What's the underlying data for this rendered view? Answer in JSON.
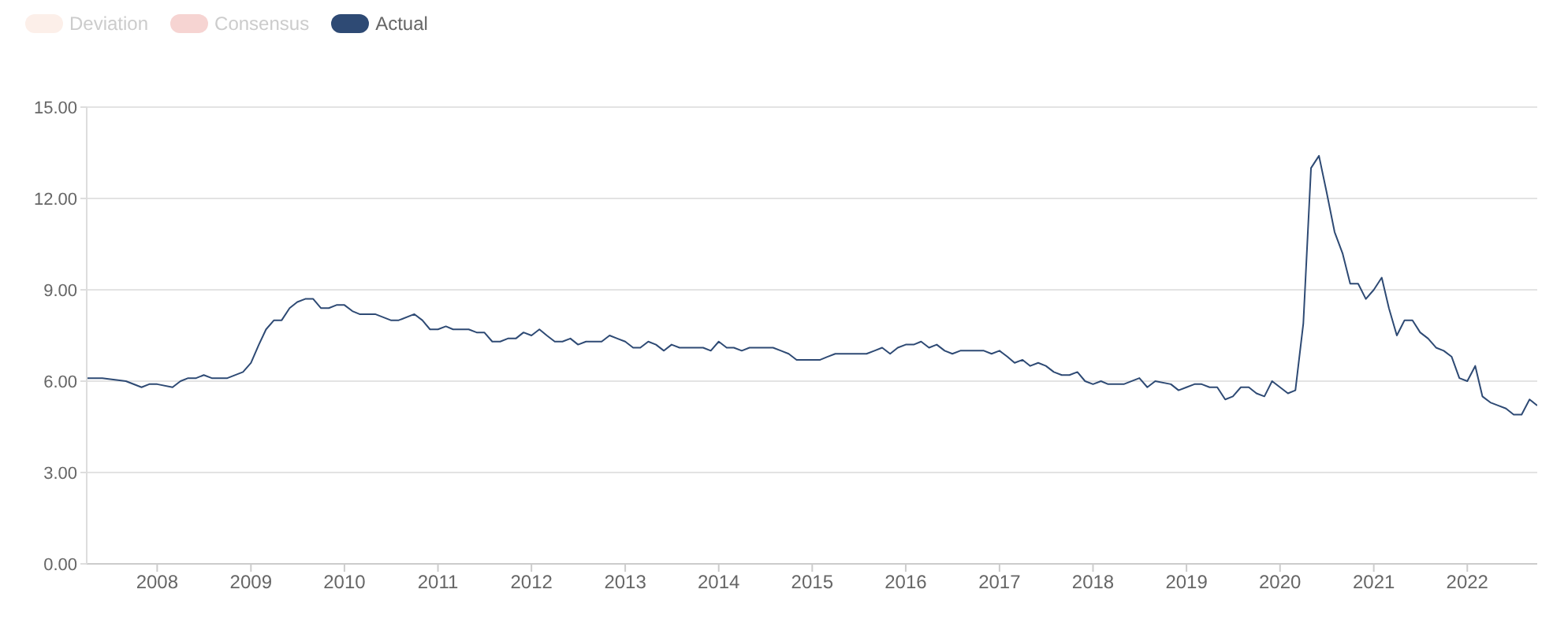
{
  "chart_data": {
    "type": "line",
    "x": [
      "2007-04",
      "2007-06",
      "2007-09",
      "2007-11",
      "2007-12",
      "2008-01",
      "2008-03",
      "2008-04",
      "2008-05",
      "2008-06",
      "2008-07",
      "2008-08",
      "2008-10",
      "2008-12",
      "2009-01",
      "2009-02",
      "2009-03",
      "2009-04",
      "2009-05",
      "2009-06",
      "2009-07",
      "2009-08",
      "2009-09",
      "2009-10",
      "2009-11",
      "2009-12",
      "2010-01",
      "2010-02",
      "2010-03",
      "2010-05",
      "2010-07",
      "2010-08",
      "2010-10",
      "2010-11",
      "2010-12",
      "2011-01",
      "2011-02",
      "2011-03",
      "2011-05",
      "2011-06",
      "2011-07",
      "2011-08",
      "2011-09",
      "2011-10",
      "2011-11",
      "2011-12",
      "2012-01",
      "2012-02",
      "2012-03",
      "2012-04",
      "2012-05",
      "2012-06",
      "2012-07",
      "2012-08",
      "2012-10",
      "2012-11",
      "2012-12",
      "2013-01",
      "2013-02",
      "2013-03",
      "2013-04",
      "2013-05",
      "2013-06",
      "2013-07",
      "2013-08",
      "2013-11",
      "2013-12",
      "2014-01",
      "2014-02",
      "2014-03",
      "2014-04",
      "2014-05",
      "2014-08",
      "2014-09",
      "2014-10",
      "2014-11",
      "2015-02",
      "2015-03",
      "2015-04",
      "2015-08",
      "2015-09",
      "2015-10",
      "2015-11",
      "2015-12",
      "2016-01",
      "2016-02",
      "2016-03",
      "2016-04",
      "2016-05",
      "2016-06",
      "2016-07",
      "2016-08",
      "2016-11",
      "2016-12",
      "2017-01",
      "2017-02",
      "2017-03",
      "2017-04",
      "2017-05",
      "2017-06",
      "2017-07",
      "2017-08",
      "2017-09",
      "2017-10",
      "2017-11",
      "2017-12",
      "2018-01",
      "2018-02",
      "2018-03",
      "2018-05",
      "2018-07",
      "2018-08",
      "2018-09",
      "2018-11",
      "2018-12",
      "2019-01",
      "2019-02",
      "2019-03",
      "2019-04",
      "2019-05",
      "2019-06",
      "2019-07",
      "2019-08",
      "2019-09",
      "2019-10",
      "2019-11",
      "2019-12",
      "2020-01",
      "2020-02",
      "2020-03",
      "2020-04",
      "2020-05",
      "2020-06",
      "2020-07",
      "2020-08",
      "2020-09",
      "2020-10",
      "2020-11",
      "2020-12",
      "2021-01",
      "2021-02",
      "2021-03",
      "2021-04",
      "2021-05",
      "2021-06",
      "2021-07",
      "2021-08",
      "2021-09",
      "2021-10",
      "2021-11",
      "2021-12",
      "2022-01",
      "2022-02",
      "2022-03",
      "2022-04",
      "2022-05",
      "2022-06",
      "2022-07",
      "2022-08",
      "2022-09",
      "2022-10"
    ],
    "series": [
      {
        "name": "Deviation",
        "color": "#fcefe9",
        "values": [
          null,
          null,
          null,
          null,
          null,
          null,
          null,
          null,
          null,
          null,
          null,
          null,
          null,
          null,
          null,
          null,
          null,
          null,
          null,
          null,
          null,
          null,
          null,
          null,
          null,
          null,
          null,
          null,
          null,
          null,
          null,
          null,
          null,
          null,
          null,
          null,
          null,
          null,
          null,
          null,
          null,
          null,
          null,
          null,
          null,
          null,
          null,
          null,
          null,
          null,
          null,
          null,
          null,
          null,
          null,
          null,
          null,
          null,
          null,
          null,
          null,
          null,
          null,
          null,
          null,
          null,
          null,
          null,
          null,
          null,
          null,
          null,
          null,
          null,
          null,
          null,
          null,
          null,
          null,
          null,
          null,
          null,
          null,
          null,
          null,
          null,
          null,
          null,
          null,
          null,
          null,
          null,
          null,
          null,
          null,
          null,
          null,
          null,
          null,
          null,
          null,
          null,
          null,
          null,
          null,
          null,
          null,
          null,
          null,
          null,
          null,
          null,
          null,
          null,
          null,
          null,
          null,
          null,
          null,
          null,
          null,
          null,
          null,
          null,
          null,
          null,
          null,
          null,
          null,
          null,
          null,
          null,
          null,
          null,
          null,
          null,
          null,
          null,
          null,
          null,
          null,
          null,
          null,
          null,
          null,
          null,
          null,
          null,
          null,
          null,
          null,
          null,
          null,
          null,
          null,
          null,
          null,
          null,
          null,
          null,
          null
        ]
      },
      {
        "name": "Consensus",
        "color": "#f6d4d2",
        "values": [
          null,
          null,
          null,
          null,
          null,
          null,
          null,
          null,
          null,
          null,
          null,
          null,
          null,
          null,
          null,
          null,
          null,
          null,
          null,
          null,
          null,
          null,
          null,
          null,
          null,
          null,
          null,
          null,
          null,
          null,
          null,
          null,
          null,
          null,
          null,
          null,
          null,
          null,
          null,
          null,
          null,
          null,
          null,
          null,
          null,
          null,
          null,
          null,
          null,
          null,
          null,
          null,
          null,
          null,
          null,
          null,
          null,
          null,
          null,
          null,
          null,
          null,
          null,
          null,
          null,
          null,
          null,
          null,
          null,
          null,
          null,
          null,
          null,
          null,
          null,
          null,
          null,
          null,
          null,
          null,
          null,
          null,
          null,
          null,
          null,
          null,
          null,
          null,
          null,
          null,
          null,
          null,
          null,
          null,
          null,
          null,
          null,
          null,
          null,
          null,
          null,
          null,
          null,
          null,
          null,
          null,
          null,
          null,
          null,
          null,
          null,
          null,
          null,
          null,
          null,
          null,
          null,
          null,
          null,
          null,
          null,
          null,
          null,
          null,
          null,
          null,
          null,
          null,
          null,
          null,
          null,
          null,
          null,
          null,
          null,
          null,
          null,
          null,
          null,
          null,
          null,
          null,
          null,
          null,
          null,
          null,
          null,
          null,
          null,
          null,
          null,
          null,
          null,
          null,
          null,
          null,
          null,
          null,
          null,
          null,
          null
        ]
      },
      {
        "name": "Actual",
        "color": "#2e4a74",
        "values": [
          6.1,
          6.1,
          6.0,
          5.8,
          5.9,
          5.9,
          5.8,
          6.0,
          6.1,
          6.1,
          6.2,
          6.1,
          6.1,
          6.3,
          6.6,
          7.2,
          7.7,
          8.0,
          8.0,
          8.4,
          8.6,
          8.7,
          8.7,
          8.4,
          8.4,
          8.5,
          8.5,
          8.3,
          8.2,
          8.2,
          8.0,
          8.0,
          8.2,
          8.0,
          7.7,
          7.7,
          7.8,
          7.7,
          7.7,
          7.6,
          7.6,
          7.3,
          7.3,
          7.4,
          7.4,
          7.6,
          7.5,
          7.7,
          7.5,
          7.3,
          7.3,
          7.4,
          7.2,
          7.3,
          7.3,
          7.5,
          7.4,
          7.3,
          7.1,
          7.1,
          7.3,
          7.2,
          7.0,
          7.2,
          7.1,
          7.1,
          7.0,
          7.3,
          7.1,
          7.1,
          7.0,
          7.1,
          7.1,
          7.0,
          6.9,
          6.7,
          6.7,
          6.8,
          6.9,
          6.9,
          7.0,
          7.1,
          6.9,
          7.1,
          7.2,
          7.2,
          7.3,
          7.1,
          7.2,
          7.0,
          6.9,
          7.0,
          7.0,
          6.9,
          7.0,
          6.8,
          6.6,
          6.7,
          6.5,
          6.6,
          6.5,
          6.3,
          6.2,
          6.2,
          6.3,
          6.0,
          5.9,
          6.0,
          5.9,
          5.9,
          6.1,
          5.8,
          6.0,
          5.9,
          5.7,
          5.8,
          5.9,
          5.9,
          5.8,
          5.8,
          5.4,
          5.5,
          5.8,
          5.8,
          5.6,
          5.5,
          6.0,
          5.8,
          5.6,
          5.7,
          7.9,
          13.0,
          13.4,
          12.2,
          10.9,
          10.2,
          9.2,
          9.2,
          8.7,
          9.0,
          9.4,
          8.4,
          7.5,
          8.0,
          8.0,
          7.6,
          7.4,
          7.1,
          7.0,
          6.8,
          6.1,
          6.0,
          6.5,
          5.5,
          5.3,
          5.2,
          5.1,
          4.9,
          4.9,
          5.4,
          5.2
        ]
      }
    ],
    "xlim": [
      "2007-04",
      "2022-10"
    ],
    "xticks": [
      "2008",
      "2009",
      "2010",
      "2011",
      "2012",
      "2013",
      "2014",
      "2015",
      "2016",
      "2017",
      "2018",
      "2019",
      "2020",
      "2021",
      "2022"
    ],
    "ylim": [
      0,
      15
    ],
    "yticks": [
      {
        "value": 0,
        "label": "0.00"
      },
      {
        "value": 3,
        "label": "3.00"
      },
      {
        "value": 6,
        "label": "6.00"
      },
      {
        "value": 9,
        "label": "9.00"
      },
      {
        "value": 12,
        "label": "12.00"
      },
      {
        "value": 15,
        "label": "15.00"
      }
    ],
    "grid": "y",
    "legend": "top left",
    "marker": "none",
    "line_style": "solid"
  }
}
